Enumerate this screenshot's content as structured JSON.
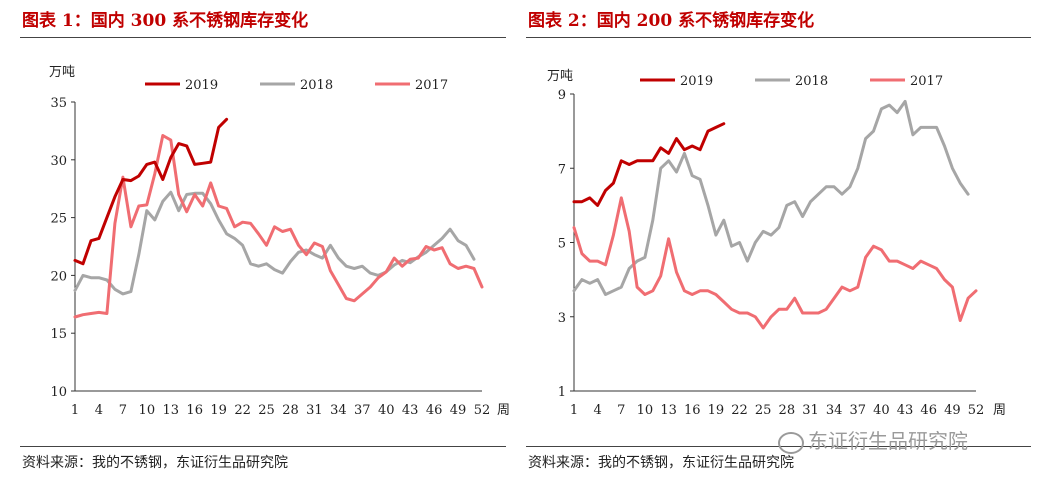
{
  "panels": [
    {
      "title": "图表 1：国内 300 系不锈钢库存变化",
      "source": "资料来源：我的不锈钢，东证衍生品研究院"
    },
    {
      "title": "图表 2：国内 200 系不锈钢库存变化",
      "source": "资料来源：我的不锈钢，东证衍生品研究院"
    }
  ],
  "watermark": "东证衍生品研究院",
  "colors": {
    "2019": "#c00000",
    "2018": "#a6a6a6",
    "2017": "#f06d72"
  },
  "chart_data": [
    {
      "type": "line",
      "ylabel": "万吨",
      "xlabel": "周",
      "ylim": [
        10,
        35
      ],
      "yticks": [
        10,
        15,
        20,
        25,
        30,
        35
      ],
      "xlim": [
        1,
        52
      ],
      "xticks": [
        1,
        4,
        7,
        10,
        13,
        16,
        19,
        22,
        25,
        28,
        31,
        34,
        37,
        40,
        43,
        46,
        49,
        52
      ],
      "legend": "top",
      "series": [
        {
          "name": "2019",
          "x": [
            1,
            2,
            3,
            4,
            5,
            6,
            7,
            8,
            9,
            10,
            11,
            12,
            13,
            14,
            15,
            16,
            17,
            18,
            19,
            20
          ],
          "values": [
            21.3,
            21.0,
            23.0,
            23.2,
            25.0,
            26.8,
            28.3,
            28.2,
            28.6,
            29.6,
            29.8,
            28.3,
            30.2,
            31.4,
            31.2,
            29.6,
            29.7,
            29.8,
            32.8,
            33.5
          ]
        },
        {
          "name": "2018",
          "x": [
            1,
            2,
            3,
            4,
            5,
            6,
            7,
            8,
            9,
            10,
            11,
            12,
            13,
            14,
            15,
            16,
            17,
            18,
            19,
            20,
            21,
            22,
            23,
            24,
            25,
            26,
            27,
            28,
            29,
            30,
            31,
            32,
            33,
            34,
            35,
            36,
            37,
            38,
            39,
            40,
            41,
            42,
            43,
            44,
            45,
            46,
            47,
            48,
            49,
            50,
            51
          ],
          "values": [
            18.7,
            20.0,
            19.8,
            19.8,
            19.6,
            18.8,
            18.4,
            18.6,
            21.8,
            25.6,
            24.8,
            26.4,
            27.2,
            25.6,
            27.0,
            27.1,
            27.1,
            26.2,
            24.8,
            23.6,
            23.2,
            22.6,
            21.0,
            20.8,
            21.0,
            20.5,
            20.2,
            21.2,
            22.0,
            22.2,
            21.8,
            21.5,
            22.6,
            21.5,
            20.8,
            20.6,
            20.8,
            20.2,
            20.0,
            20.3,
            20.9,
            21.3,
            21.1,
            21.6,
            22.0,
            22.6,
            23.2,
            24.0,
            23.0,
            22.6,
            21.4
          ]
        },
        {
          "name": "2017",
          "x": [
            1,
            2,
            3,
            4,
            5,
            6,
            7,
            8,
            9,
            10,
            11,
            12,
            13,
            14,
            15,
            16,
            17,
            18,
            19,
            20,
            21,
            22,
            23,
            24,
            25,
            26,
            27,
            28,
            29,
            30,
            31,
            32,
            33,
            34,
            35,
            36,
            37,
            38,
            39,
            40,
            41,
            42,
            43,
            44,
            45,
            46,
            47,
            48,
            49,
            50,
            51,
            52
          ],
          "values": [
            16.4,
            16.6,
            16.7,
            16.8,
            16.7,
            24.5,
            28.5,
            24.2,
            26.0,
            26.1,
            28.8,
            32.1,
            31.7,
            27.0,
            25.5,
            27.0,
            26.0,
            28.0,
            26.0,
            25.8,
            24.2,
            24.6,
            24.5,
            23.6,
            22.6,
            24.2,
            23.8,
            24.0,
            22.6,
            21.8,
            22.8,
            22.5,
            20.4,
            19.2,
            18.0,
            17.8,
            18.4,
            19.0,
            19.8,
            20.3,
            21.5,
            20.8,
            21.4,
            21.5,
            22.5,
            22.2,
            22.4,
            21.0,
            20.6,
            20.8,
            20.6,
            19.0
          ]
        }
      ]
    },
    {
      "type": "line",
      "ylabel": "万吨",
      "xlabel": "周",
      "ylim": [
        1,
        9
      ],
      "yticks": [
        1,
        3,
        5,
        7,
        9
      ],
      "xlim": [
        1,
        52
      ],
      "xticks": [
        1,
        4,
        7,
        10,
        13,
        16,
        19,
        22,
        25,
        28,
        31,
        34,
        37,
        40,
        43,
        46,
        49,
        52
      ],
      "legend": "top",
      "series": [
        {
          "name": "2019",
          "x": [
            1,
            2,
            3,
            4,
            5,
            6,
            7,
            8,
            9,
            10,
            11,
            12,
            13,
            14,
            15,
            16,
            17,
            18,
            19,
            20
          ],
          "values": [
            6.1,
            6.1,
            6.2,
            6.0,
            6.4,
            6.6,
            7.2,
            7.1,
            7.2,
            7.2,
            7.2,
            7.55,
            7.4,
            7.8,
            7.5,
            7.6,
            7.5,
            8.0,
            8.1,
            8.2
          ]
        },
        {
          "name": "2018",
          "x": [
            1,
            2,
            3,
            4,
            5,
            6,
            7,
            8,
            9,
            10,
            11,
            12,
            13,
            14,
            15,
            16,
            17,
            18,
            19,
            20,
            21,
            22,
            23,
            24,
            25,
            26,
            27,
            28,
            29,
            30,
            31,
            32,
            33,
            34,
            35,
            36,
            37,
            38,
            39,
            40,
            41,
            42,
            43,
            44,
            45,
            46,
            47,
            48,
            49,
            50,
            51
          ],
          "values": [
            3.7,
            4.0,
            3.9,
            4.0,
            3.6,
            3.7,
            3.8,
            4.3,
            4.5,
            4.6,
            5.6,
            7.0,
            7.2,
            6.9,
            7.4,
            6.8,
            6.7,
            6.0,
            5.2,
            5.6,
            4.9,
            5.0,
            4.5,
            5.0,
            5.3,
            5.2,
            5.4,
            6.0,
            6.1,
            5.7,
            6.1,
            6.3,
            6.5,
            6.5,
            6.3,
            6.5,
            7.0,
            7.8,
            8.0,
            8.6,
            8.7,
            8.5,
            8.8,
            7.9,
            8.1,
            8.1,
            8.1,
            7.6,
            7.0,
            6.6,
            6.3
          ]
        },
        {
          "name": "2017",
          "x": [
            1,
            2,
            3,
            4,
            5,
            6,
            7,
            8,
            9,
            10,
            11,
            12,
            13,
            14,
            15,
            16,
            17,
            18,
            19,
            20,
            21,
            22,
            23,
            24,
            25,
            26,
            27,
            28,
            29,
            30,
            31,
            32,
            33,
            34,
            35,
            36,
            37,
            38,
            39,
            40,
            41,
            42,
            43,
            44,
            45,
            46,
            47,
            48,
            49,
            50,
            51,
            52
          ],
          "values": [
            5.4,
            4.7,
            4.5,
            4.5,
            4.4,
            5.2,
            6.2,
            5.3,
            3.8,
            3.6,
            3.7,
            4.1,
            5.1,
            4.2,
            3.7,
            3.6,
            3.7,
            3.7,
            3.6,
            3.4,
            3.2,
            3.1,
            3.1,
            3.0,
            2.7,
            3.0,
            3.2,
            3.2,
            3.5,
            3.1,
            3.1,
            3.1,
            3.2,
            3.5,
            3.8,
            3.7,
            3.8,
            4.6,
            4.9,
            4.8,
            4.5,
            4.5,
            4.4,
            4.3,
            4.5,
            4.4,
            4.3,
            4.0,
            3.8,
            2.9,
            3.5,
            3.7
          ]
        }
      ]
    }
  ]
}
